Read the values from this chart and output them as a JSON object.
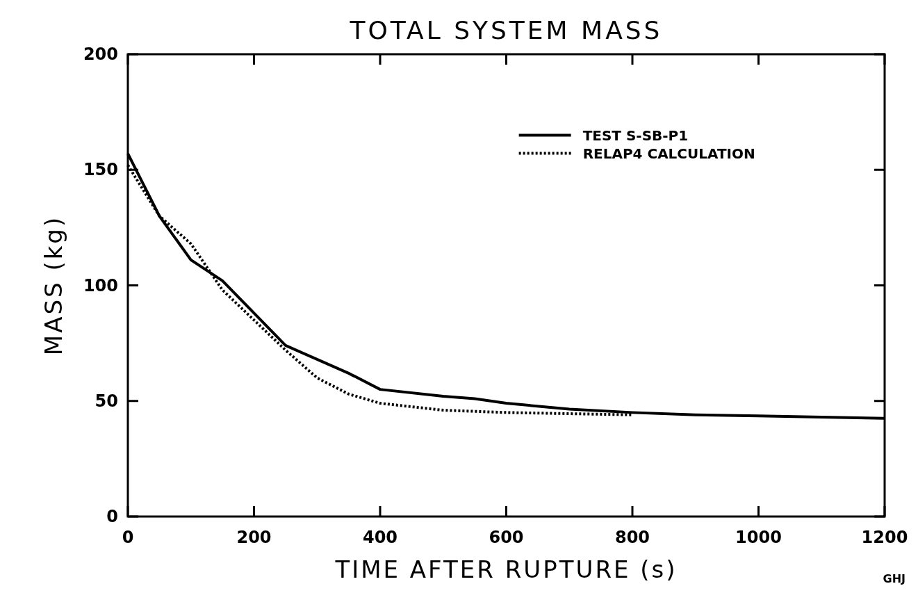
{
  "chart_data": {
    "type": "line",
    "title": "TOTAL SYSTEM MASS",
    "xlabel": "TIME AFTER RUPTURE (s)",
    "ylabel": "MASS (kg)",
    "xlim": [
      0,
      1200
    ],
    "xticks": [
      0,
      200,
      400,
      600,
      800,
      1000,
      1200
    ],
    "ylim": [
      0,
      200
    ],
    "yticks": [
      0,
      50,
      100,
      150,
      200
    ],
    "grid": false,
    "legend": "top right",
    "annotations": [
      "GHJ"
    ],
    "series": [
      {
        "name": "TEST S-SB-P1",
        "color": "#000000",
        "line_style": "solid",
        "x": [
          0,
          50,
          100,
          150,
          250,
          300,
          350,
          400,
          500,
          550,
          600,
          700,
          800,
          900,
          1000,
          1100,
          1200
        ],
        "values": [
          157,
          130,
          111,
          102,
          74,
          68,
          62,
          55,
          52,
          51,
          49,
          46.5,
          45,
          44,
          43.5,
          43,
          42.5
        ]
      },
      {
        "name": "RELAP4 CALCULATION",
        "color": "#000000",
        "line_style": "dotted",
        "x": [
          0,
          50,
          100,
          150,
          200,
          250,
          300,
          350,
          400,
          500,
          600,
          700,
          800
        ],
        "values": [
          152,
          130,
          118,
          98,
          85,
          72,
          60,
          53,
          49,
          46,
          45,
          44.5,
          44
        ]
      }
    ]
  }
}
